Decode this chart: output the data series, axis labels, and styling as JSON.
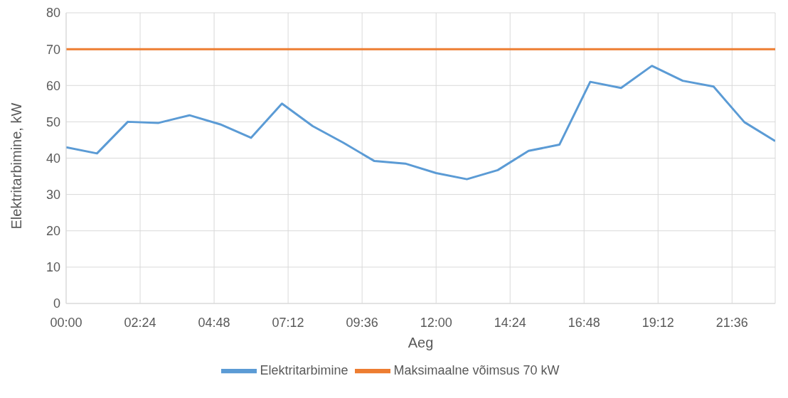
{
  "chart_data": {
    "type": "line",
    "xlabel": "Aeg",
    "ylabel": "Elektritarbimine, kW",
    "x": [
      0,
      1,
      2,
      3,
      4,
      5,
      6,
      7,
      8,
      9,
      10,
      11,
      12,
      13,
      14,
      15,
      16,
      17,
      18,
      19,
      20,
      21,
      22,
      23
    ],
    "series": [
      {
        "name": "Elektritarbimine",
        "color": "#5b9bd5",
        "values": [
          43,
          41.3,
          50,
          49.7,
          51.8,
          49.3,
          45.6,
          55,
          48.8,
          44.2,
          39.2,
          38.5,
          35.9,
          34.2,
          36.7,
          42,
          43.7,
          61,
          59.3,
          65.4,
          61.3,
          59.7,
          49.9,
          44.7
        ]
      },
      {
        "name": "Maksimaalne võimsus 70 kW",
        "color": "#ed7d31",
        "values": [
          70,
          70,
          70,
          70,
          70,
          70,
          70,
          70,
          70,
          70,
          70,
          70,
          70,
          70,
          70,
          70,
          70,
          70,
          70,
          70,
          70,
          70,
          70,
          70
        ]
      }
    ],
    "xlim": [
      0,
      23
    ],
    "xticks": [
      {
        "value": 0,
        "label": "00:00"
      },
      {
        "value": 2.4,
        "label": "02:24"
      },
      {
        "value": 4.8,
        "label": "04:48"
      },
      {
        "value": 7.2,
        "label": "07:12"
      },
      {
        "value": 9.6,
        "label": "09:36"
      },
      {
        "value": 12,
        "label": "12:00"
      },
      {
        "value": 14.4,
        "label": "14:24"
      },
      {
        "value": 16.8,
        "label": "16:48"
      },
      {
        "value": 19.2,
        "label": "19:12"
      },
      {
        "value": 21.6,
        "label": "21:36"
      }
    ],
    "ylim": [
      0,
      80
    ],
    "yticks": [
      0,
      10,
      20,
      30,
      40,
      50,
      60,
      70,
      80
    ],
    "grid": true,
    "legend": "bottom",
    "marker": "none",
    "line_style": "solid"
  }
}
